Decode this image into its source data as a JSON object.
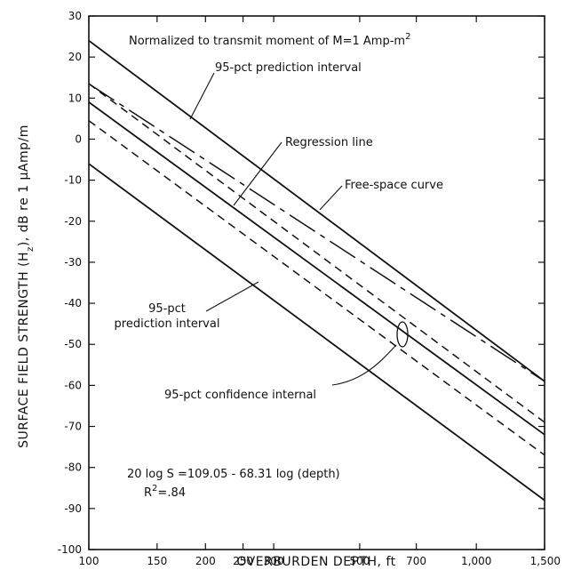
{
  "chart_data": {
    "type": "line",
    "title": "",
    "xlabel": "OVERBURDEN DEPTH, ft",
    "ylabel": "SURFACE FIELD STRENGTH (H_z), dB re 1 μAmp/m",
    "xscale": "log",
    "xlim": [
      100,
      1500
    ],
    "ylim": [
      -100,
      30
    ],
    "x_ticks": [
      100,
      150,
      200,
      250,
      300,
      500,
      700,
      1000,
      1500
    ],
    "x_tick_labels": [
      "100",
      "150",
      "200",
      "250",
      "300",
      "500",
      "700",
      "1,000",
      "1,500"
    ],
    "y_ticks": [
      30,
      20,
      10,
      0,
      -10,
      -20,
      -30,
      -40,
      -50,
      -60,
      -70,
      -80,
      -90,
      -100
    ],
    "y_tick_labels": [
      "30",
      "20",
      "10",
      "0",
      "-10",
      "-20",
      "-30",
      "-40",
      "-50",
      "-60",
      "-70",
      "-80",
      "-90",
      "-100"
    ],
    "grid": false,
    "series": [
      {
        "name": "95-pct prediction interval",
        "style": "solid",
        "x": [
          100,
          1500
        ],
        "y": [
          24,
          -59
        ]
      },
      {
        "name": "Free-space curve",
        "style": "dash-dot",
        "x": [
          100,
          1500
        ],
        "y": [
          13.5,
          -59
        ]
      },
      {
        "name": "Regression line",
        "style": "solid",
        "x": [
          100,
          1500
        ],
        "y": [
          9,
          -72
        ]
      },
      {
        "name": "95-pct confidence upper",
        "style": "dashed",
        "x": [
          100,
          1500
        ],
        "y": [
          13.5,
          -69
        ]
      },
      {
        "name": "95-pct confidence lower",
        "style": "dashed",
        "x": [
          100,
          1500
        ],
        "y": [
          4.5,
          -77
        ]
      },
      {
        "name": "95-pct prediction interval",
        "style": "solid",
        "x": [
          100,
          1500
        ],
        "y": [
          -6,
          -88
        ]
      }
    ],
    "annotations": {
      "normalized_prefix": "Normalized to transmit moment of M=1 Amp-m",
      "normalized_sup": "2",
      "upper_prediction_label": "95-pct prediction interval",
      "regression_label": "Regression line",
      "free_space_label": "Free-space curve",
      "lower_prediction_line1": "95-pct",
      "lower_prediction_line2": "prediction interval",
      "confidence_label": "95-pct confidence internal",
      "equation": "20 log S =109.05 - 68.31 log (depth)",
      "r_squared_prefix": "R",
      "r_squared_sup": "2",
      "r_squared_value": "=.84"
    }
  }
}
